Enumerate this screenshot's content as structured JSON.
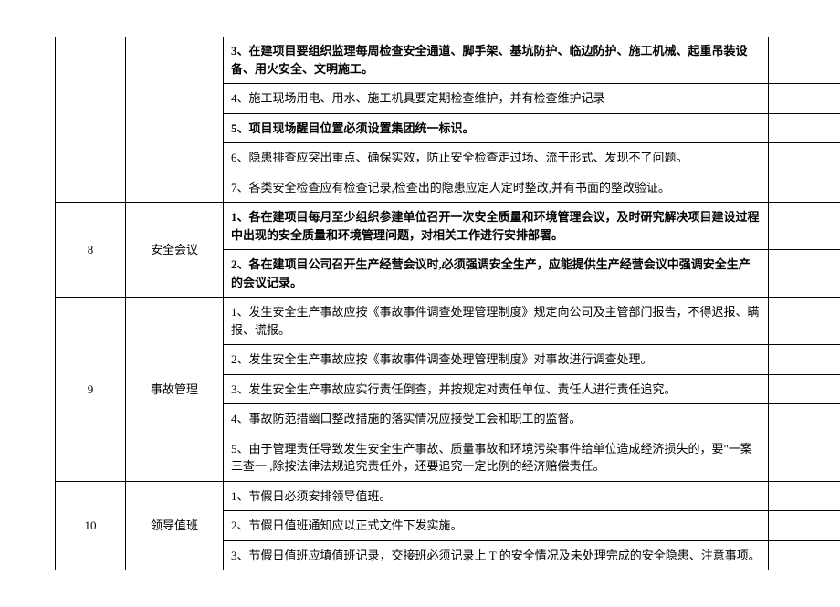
{
  "rows": {
    "r1": {
      "desc": "3、在建项目要组织监理每周检查安全通道、脚手架、基坑防护、临边防护、施工机械、起重吊装设备、用火安全、文明施工。",
      "bold": true
    },
    "r2": {
      "desc": "4、施工现场用电、用水、施工机具要定期检查维护，并有检查维护记录"
    },
    "r3": {
      "desc": "5、项目现场醒目位置必须设置集团统一标识。",
      "bold": true
    },
    "r4": {
      "desc": "6、隐患排查应突出重点、确保实效，防止安全检查走过场、流于形式、发现不了问题。"
    },
    "r5": {
      "desc": "7、各类安全检查应有检查记录,检查出的隐患应定人定时整改,并有书面的整改验证。"
    },
    "g8": {
      "num": "8",
      "cat": "安全会议"
    },
    "r6": {
      "desc": "1、各在建项目每月至少组织参建单位召开一次安全质量和环境管理会议，及时研究解决项目建设过程中出现的安全质量和环境管理问题，对相关工作进行安排部署。",
      "bold": true
    },
    "r7": {
      "desc": "2、各在建项目公司召开生产经营会议时,必须强调安全生产，应能提供生产经营会议中强调安全生产的会议记录。",
      "bold": true
    },
    "g9": {
      "num": "9",
      "cat": "事故管理"
    },
    "r8": {
      "desc": "1、发生安全生产事故应按《事故事件调查处理管理制度》规定向公司及主管部门报告，不得迟报、瞒报、谎报。"
    },
    "r9": {
      "desc": "2、发生安全生产事故应按《事故事件调查处理管理制度》对事故进行调查处理。"
    },
    "r10": {
      "desc": "3、发生安全生产事故应实行责任倒查，并按规定对责任单位、责任人进行责任追究。"
    },
    "r11": {
      "desc": "4、事故防范措幽口整改措施的落实情况应接受工会和职工的监督。"
    },
    "r12": {
      "desc": "5、由于管理责任导致发生安全生产事故、质量事故和环境污染事件给单位造成经济损失的，要\"一案三查一 ,除按法律法规追究责任外，还要追究一定比例的经济赔偿责任。"
    },
    "g10": {
      "num": "10",
      "cat": "领导值班"
    },
    "r13": {
      "desc": "1、节假日必须安排领导值班。"
    },
    "r14": {
      "desc": "2、节假日值班通知应以正式文件下发实施。"
    },
    "r15": {
      "desc": "3、节假日值班应填值班记录，交接班必须记录上 T 的安全情况及未处理完成的安全隐患、注意事项。"
    }
  }
}
